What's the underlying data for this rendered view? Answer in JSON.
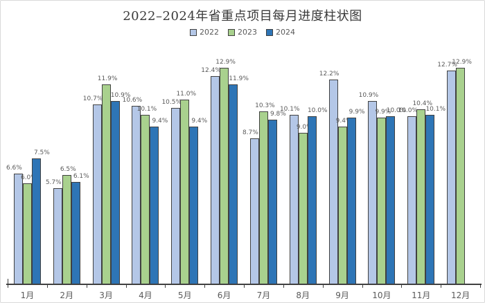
{
  "title": "2022–2024年省重点项目每月进度柱状图",
  "chart_data": {
    "type": "bar",
    "title": "2022–2024年省重点项目每月进度柱状图",
    "categories": [
      "1月",
      "2月",
      "3月",
      "4月",
      "5月",
      "6月",
      "7月",
      "8月",
      "9月",
      "10月",
      "11月",
      "12月"
    ],
    "series": [
      {
        "name": "2022",
        "color": "#b4c7e7",
        "values": [
          6.6,
          5.7,
          10.7,
          10.6,
          10.5,
          12.4,
          8.7,
          10.1,
          12.2,
          10.9,
          10.0,
          12.7
        ]
      },
      {
        "name": "2023",
        "color": "#a9d18e",
        "values": [
          6.0,
          6.5,
          11.9,
          10.1,
          11.0,
          12.9,
          10.3,
          9.0,
          9.4,
          9.9,
          10.4,
          12.9
        ]
      },
      {
        "name": "2024",
        "color": "#2e75b6",
        "values": [
          7.5,
          6.1,
          10.9,
          9.4,
          9.4,
          11.9,
          9.8,
          10.0,
          9.9,
          10.0,
          10.1,
          null
        ]
      }
    ],
    "value_suffix": "%",
    "xlabel": "",
    "ylabel": "",
    "ylim": [
      0,
      13.5
    ],
    "grid": false,
    "legend_position": "top",
    "bar_border_color": "#404040",
    "label_color": "#595959",
    "axis_color": "#404040"
  }
}
